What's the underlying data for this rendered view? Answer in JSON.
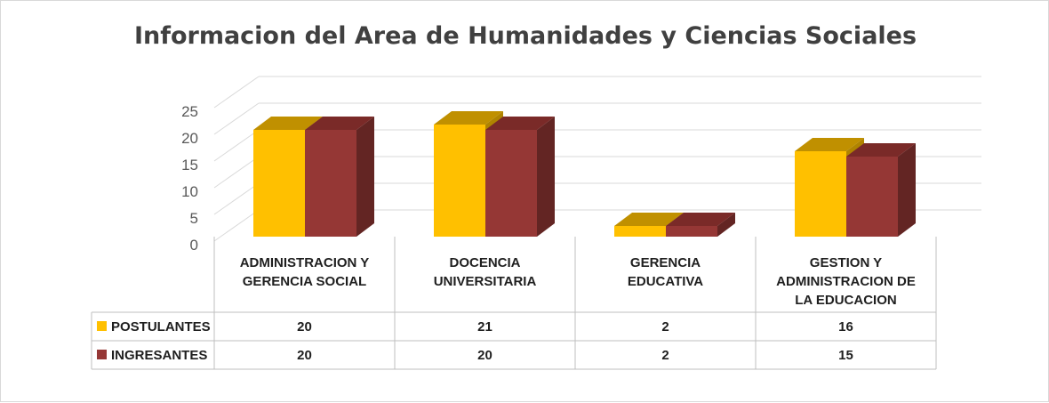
{
  "chart_data": {
    "type": "bar",
    "title": "Informacion del Area de Humanidades y Ciencias Sociales",
    "categories": [
      [
        "ADMINISTRACION Y",
        "GERENCIA SOCIAL"
      ],
      [
        "DOCENCIA",
        "UNIVERSITARIA"
      ],
      [
        "GERENCIA",
        "EDUCATIVA"
      ],
      [
        "GESTION Y",
        "ADMINISTRACION DE",
        "LA EDUCACION"
      ]
    ],
    "series": [
      {
        "name": "POSTULANTES",
        "values": [
          20,
          21,
          2,
          16
        ],
        "color": "#FFC000",
        "top": "#C09000",
        "side": "#B08400"
      },
      {
        "name": "INGRESANTES",
        "values": [
          20,
          20,
          2,
          15
        ],
        "color": "#953735",
        "top": "#7A2A28",
        "side": "#632523"
      }
    ],
    "ylim": [
      0,
      25
    ],
    "yticks": [
      0,
      5,
      10,
      15,
      20,
      25
    ],
    "grid": true,
    "legend": "data-table",
    "style": "3d-column"
  }
}
